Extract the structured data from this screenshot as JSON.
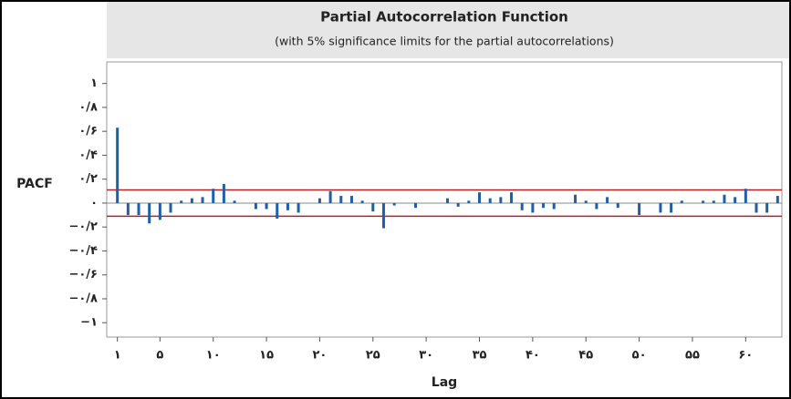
{
  "chart_data": {
    "type": "bar",
    "title": "Partial Autocorrelation Function",
    "subtitle": "(with 5% significance limits for the partial autocorrelations)",
    "y_label": "PACF",
    "x_label": "Lag",
    "x": [
      1,
      2,
      3,
      4,
      5,
      6,
      7,
      8,
      9,
      10,
      11,
      12,
      13,
      14,
      15,
      16,
      17,
      18,
      19,
      20,
      21,
      22,
      23,
      24,
      25,
      26,
      27,
      28,
      29,
      30,
      31,
      32,
      33,
      34,
      35,
      36,
      37,
      38,
      39,
      40,
      41,
      42,
      43,
      44,
      45,
      46,
      47,
      48,
      49,
      50,
      51,
      52,
      53,
      54,
      55,
      56,
      57,
      58,
      59,
      60,
      61,
      62,
      63
    ],
    "values": [
      0.63,
      -0.1,
      -0.1,
      -0.17,
      -0.14,
      -0.08,
      0.02,
      0.04,
      0.05,
      0.12,
      0.16,
      0.02,
      0,
      -0.05,
      -0.05,
      -0.13,
      -0.06,
      -0.08,
      0,
      0.04,
      0.1,
      0.06,
      0.06,
      0.02,
      -0.07,
      -0.21,
      -0.02,
      0,
      -0.04,
      0,
      0,
      0.04,
      -0.03,
      0.02,
      0.09,
      0.04,
      0.05,
      0.09,
      -0.06,
      -0.08,
      -0.04,
      -0.05,
      0,
      0.07,
      0.02,
      -0.05,
      0.05,
      -0.04,
      0,
      -0.1,
      0,
      -0.08,
      -0.08,
      0.02,
      0,
      0.02,
      0.02,
      0.07,
      0.05,
      0.12,
      -0.08,
      -0.08,
      0.06
    ],
    "color": "#1f5fa8",
    "significance_limit": 0.11,
    "limit_color": "#b22222",
    "xlim": [
      0,
      63.4
    ],
    "ylim": [
      -1.12,
      1.18
    ],
    "xticks": [
      {
        "value": 1,
        "label": "۱"
      },
      {
        "value": 5,
        "label": "۵"
      },
      {
        "value": 10,
        "label": "۱۰"
      },
      {
        "value": 15,
        "label": "۱۵"
      },
      {
        "value": 20,
        "label": "۲۰"
      },
      {
        "value": 25,
        "label": "۲۵"
      },
      {
        "value": 30,
        "label": "۳۰"
      },
      {
        "value": 35,
        "label": "۳۵"
      },
      {
        "value": 40,
        "label": "۴۰"
      },
      {
        "value": 45,
        "label": "۴۵"
      },
      {
        "value": 50,
        "label": "۵۰"
      },
      {
        "value": 55,
        "label": "۵۵"
      },
      {
        "value": 60,
        "label": "۶۰"
      }
    ],
    "yticks": [
      {
        "value": 1,
        "label": "۱"
      },
      {
        "value": 0.8,
        "label": "۰/۸"
      },
      {
        "value": 0.6,
        "label": "۰/۶"
      },
      {
        "value": 0.4,
        "label": "۰/۴"
      },
      {
        "value": 0.2,
        "label": "۰/۲"
      },
      {
        "value": 0,
        "label": "۰"
      },
      {
        "value": -0.2,
        "label": "−۰/۲"
      },
      {
        "value": -0.4,
        "label": "−۰/۴"
      },
      {
        "value": -0.6,
        "label": "−۰/۶"
      },
      {
        "value": -0.8,
        "label": "−۰/۸"
      },
      {
        "value": -1,
        "label": "−۱"
      }
    ]
  }
}
